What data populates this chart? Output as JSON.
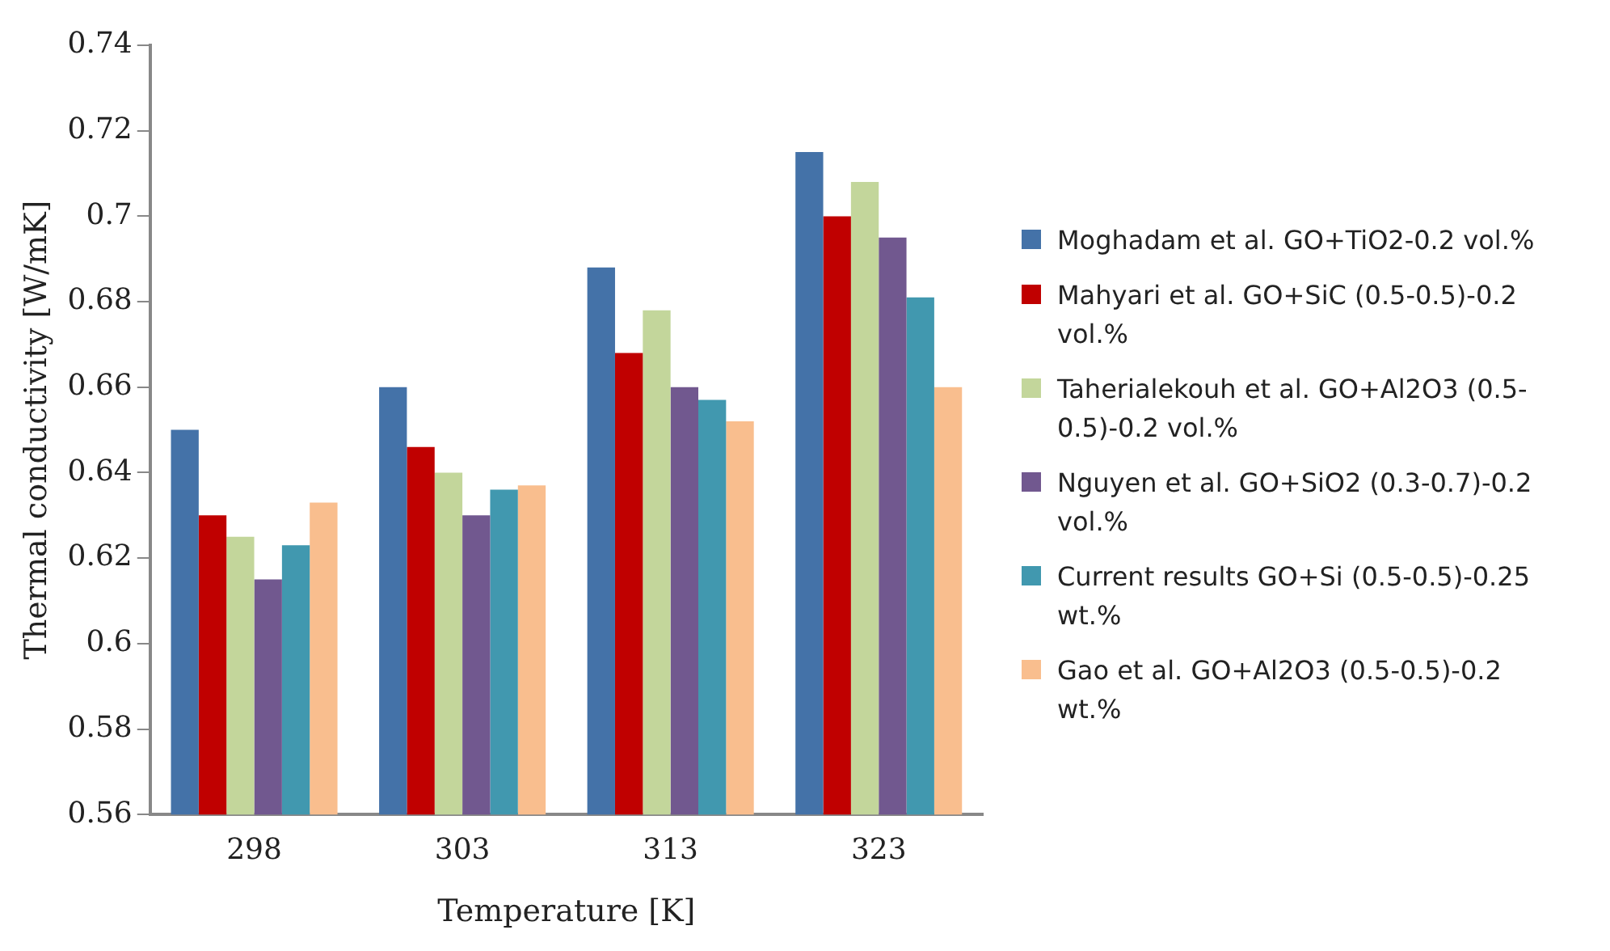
{
  "chart_data": {
    "type": "bar",
    "xlabel": "Temperature [K]",
    "ylabel": "Thermal conductivity [W/mK]",
    "categories": [
      "298",
      "303",
      "313",
      "323"
    ],
    "series": [
      {
        "name": "Moghadam et al. GO+TiO2-0.2 vol.%",
        "color": "#4472a8",
        "values": [
          0.65,
          0.66,
          0.688,
          0.715
        ]
      },
      {
        "name": "Mahyari et al. GO+SiC (0.5-0.5)-0.2 vol.%",
        "color": "#c00000",
        "values": [
          0.63,
          0.646,
          0.668,
          0.7
        ]
      },
      {
        "name": "Taherialekouh et al. GO+Al2O3 (0.5-0.5)-0.2 vol.%",
        "color": "#c3d69b",
        "values": [
          0.625,
          0.64,
          0.678,
          0.708
        ]
      },
      {
        "name": "Nguyen et al. GO+SiO2 (0.3-0.7)-0.2 vol.%",
        "color": "#71588f",
        "values": [
          0.615,
          0.63,
          0.66,
          0.695
        ]
      },
      {
        "name": "Current results GO+Si (0.5-0.5)-0.25 wt.%",
        "color": "#4198af",
        "values": [
          0.623,
          0.636,
          0.657,
          0.681
        ]
      },
      {
        "name": "Gao et al. GO+Al2O3 (0.5-0.5)-0.2 wt.%",
        "color": "#f9be8e",
        "values": [
          0.633,
          0.637,
          0.652,
          0.66
        ]
      }
    ],
    "ylim": [
      0.56,
      0.74
    ],
    "yticks": [
      0.56,
      0.58,
      0.6,
      0.62,
      0.64,
      0.66,
      0.68,
      0.7,
      0.72,
      0.74
    ],
    "grid": false,
    "legend": "right"
  }
}
